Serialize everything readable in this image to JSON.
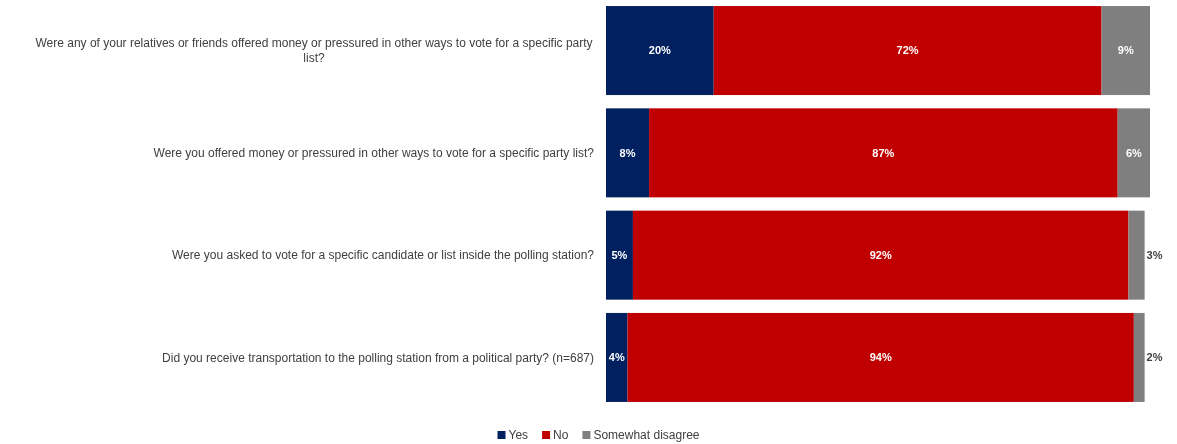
{
  "chart_data": {
    "type": "bar",
    "orientation": "horizontal",
    "stacked": true,
    "legend": "bottom",
    "categories": [
      "Were any of your relatives or friends offered money or pressured in other ways to vote for a specific party list?",
      "Were you offered money or pressured in other ways to vote for a specific party list?",
      "Were you asked to vote for a specific candidate or list inside the polling station?",
      "Did you receive transportation to the polling station from a political party? (n=687)"
    ],
    "series": [
      {
        "name": "Yes",
        "color": "#002060",
        "values": [
          20,
          8,
          5,
          4
        ],
        "value_labels": [
          "20%",
          "8%",
          "5%",
          "4%"
        ]
      },
      {
        "name": "No",
        "color": "#c00000",
        "values": [
          72,
          87,
          92,
          94
        ],
        "value_labels": [
          "72%",
          "87%",
          "92%",
          "94%"
        ]
      },
      {
        "name": "Somewhat disagree",
        "color": "#7f7f7f",
        "values": [
          9,
          6,
          3,
          2
        ],
        "value_labels": [
          "9%",
          "6%",
          "3%",
          "2%"
        ]
      }
    ]
  }
}
